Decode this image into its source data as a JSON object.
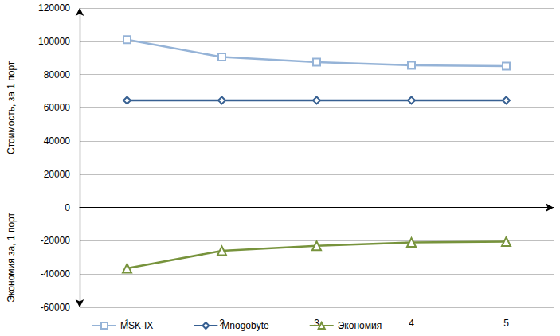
{
  "chart_data": {
    "type": "line",
    "ylabel": {
      "upper": "Стоимость, за 1 порт",
      "lower": "Экономия за, 1 порт"
    },
    "categories": [
      "1",
      "2",
      "3",
      "4",
      "5"
    ],
    "series": [
      {
        "name": "MSK-IX",
        "color": "#95b3d7",
        "marker": "square",
        "values": [
          101000,
          90500,
          87500,
          85500,
          85000
        ]
      },
      {
        "name": "Mnogobyte",
        "color": "#376092",
        "marker": "diamond",
        "values": [
          64500,
          64500,
          64500,
          64500,
          64500
        ]
      },
      {
        "name": "Экономия",
        "color": "#77933c",
        "marker": "triangle",
        "values": [
          -36500,
          -26000,
          -23000,
          -21000,
          -20500
        ]
      }
    ],
    "ylim": [
      -60000,
      120000
    ],
    "yticks": [
      -60000,
      -40000,
      -20000,
      0,
      20000,
      40000,
      60000,
      80000,
      100000,
      120000
    ],
    "grid": true,
    "legend": "bottom"
  }
}
